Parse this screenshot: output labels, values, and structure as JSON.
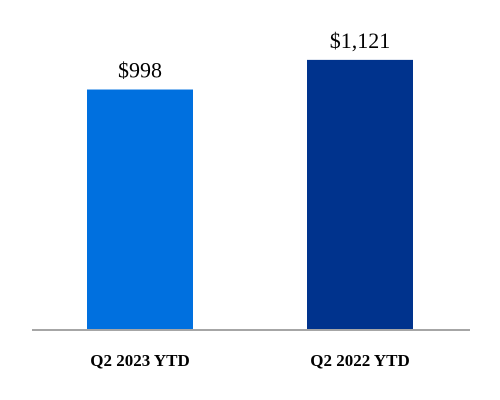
{
  "chart_data": {
    "type": "bar",
    "categories": [
      "Q2 2023 YTD",
      "Q2 2022 YTD"
    ],
    "values": [
      998,
      1121
    ],
    "value_labels": [
      "$998",
      "$1,121"
    ],
    "colors": [
      "#0070DF",
      "#00338D"
    ],
    "axis_color": "#A6A6A6",
    "ylim": [
      0,
      1245
    ],
    "grid": false,
    "legend": "none"
  }
}
